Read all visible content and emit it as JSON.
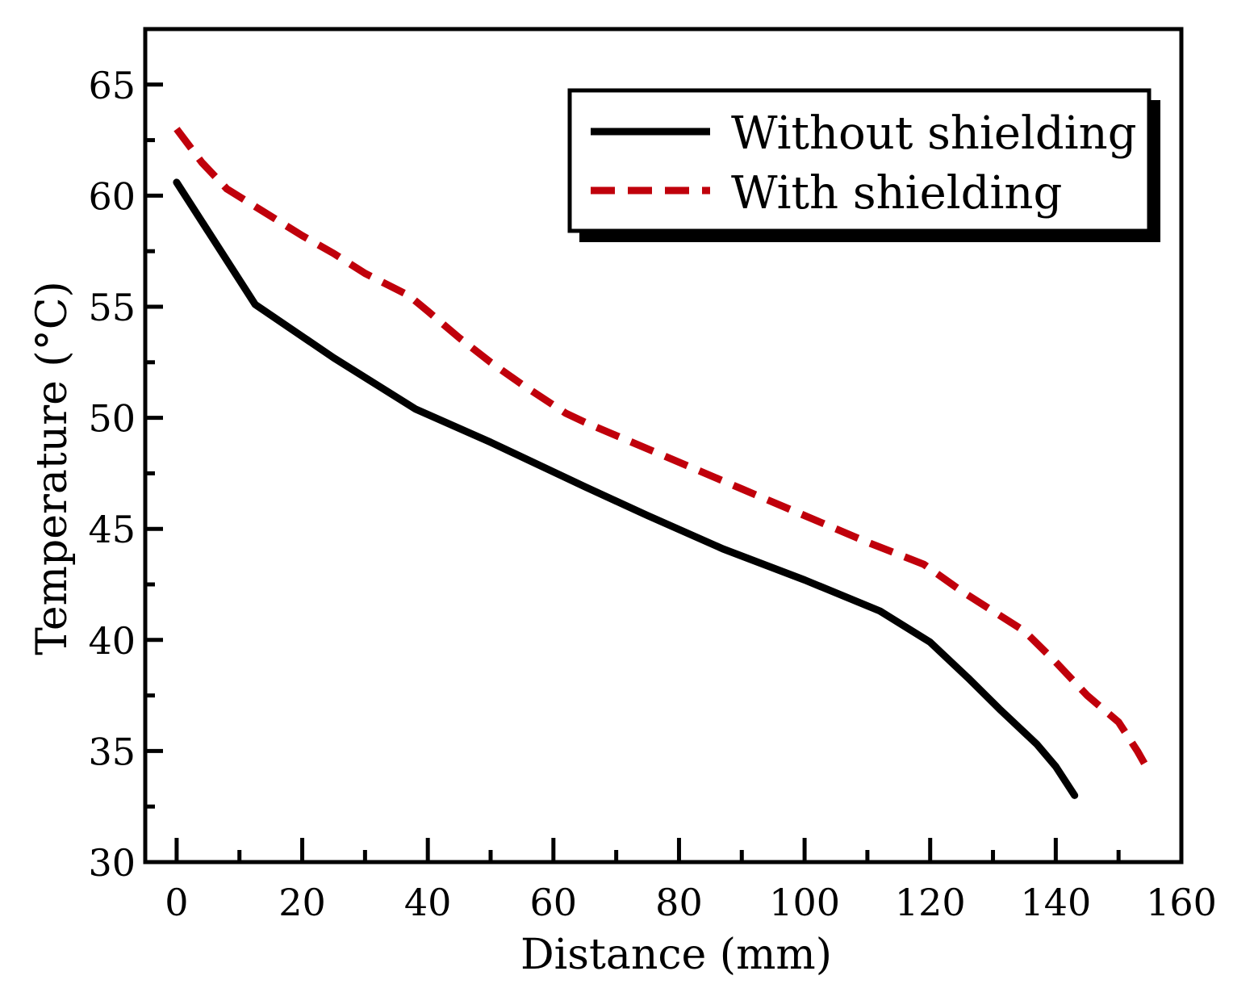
{
  "chart_data": {
    "type": "line",
    "title": "",
    "xlabel": "Distance (mm)",
    "ylabel": "Temperature (°C)",
    "xlim": [
      -5,
      160
    ],
    "ylim": [
      30,
      67.5
    ],
    "xticks": [
      0,
      20,
      40,
      60,
      80,
      100,
      120,
      140,
      160
    ],
    "yticks": [
      30,
      35,
      40,
      45,
      50,
      55,
      60,
      65
    ],
    "grid": false,
    "legend_position": "top-right",
    "series": [
      {
        "name": "Without shielding",
        "color": "#000000",
        "style": "solid",
        "x": [
          0,
          12.5,
          25,
          38,
          50,
          62,
          65,
          75,
          87,
          100,
          112,
          120,
          126,
          131,
          137,
          140,
          143
        ],
        "y": [
          60.6,
          55.1,
          52.7,
          50.4,
          48.9,
          47.3,
          46.9,
          45.6,
          44.1,
          42.7,
          41.3,
          39.9,
          38.3,
          36.9,
          35.3,
          34.3,
          33.0
        ]
      },
      {
        "name": "With shielding",
        "color": "#c0000b",
        "style": "dashed",
        "x": [
          0,
          4,
          8,
          12,
          20,
          25,
          30,
          37,
          40,
          45,
          50,
          55,
          62,
          65,
          70,
          80,
          90,
          100,
          110,
          119,
          125,
          135,
          140,
          145,
          150,
          153,
          155
        ],
        "y": [
          63.0,
          61.5,
          60.3,
          59.6,
          58.2,
          57.4,
          56.5,
          55.5,
          54.8,
          53.6,
          52.5,
          51.5,
          50.2,
          49.8,
          49.2,
          48.0,
          46.8,
          45.6,
          44.4,
          43.4,
          42.2,
          40.4,
          39.0,
          37.5,
          36.3,
          35.0,
          34.0
        ]
      }
    ]
  }
}
